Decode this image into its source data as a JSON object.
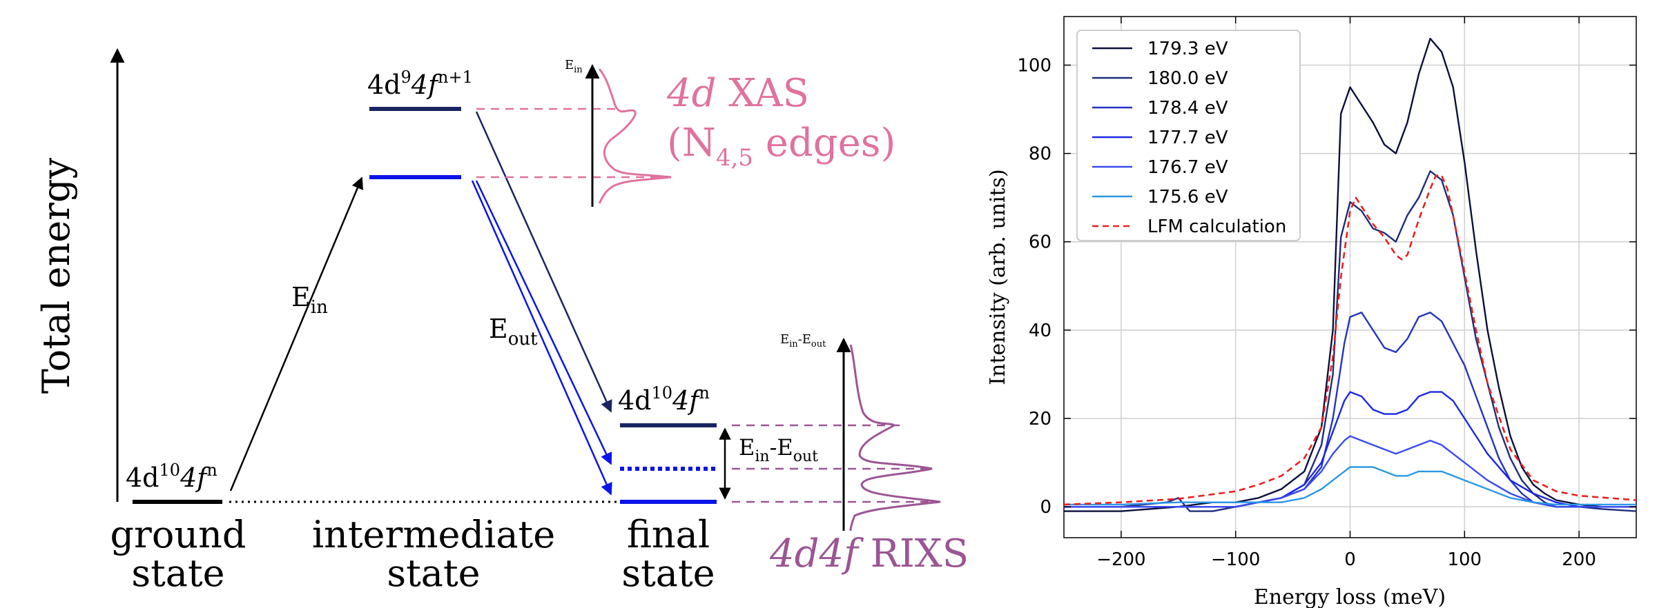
{
  "diagram": {
    "y_axis_label": "Total energy",
    "levels": {
      "ground": {
        "config_main": "4d",
        "config_sup1": "10",
        "config_mid": "4f",
        "config_sup2": "n"
      },
      "intermediate": {
        "config_main": "4d",
        "config_sup1": "9",
        "config_mid": "4f",
        "config_sup2": "n+1"
      },
      "final": {
        "config_main": "4d",
        "config_sup1": "10",
        "config_mid": "4f",
        "config_sup2": "n"
      }
    },
    "state_labels": {
      "ground_line1": "ground",
      "ground_line2": "state",
      "intermediate_line1": "intermediate",
      "intermediate_line2": "state",
      "final_line1": "final",
      "final_line2": "state"
    },
    "arrows": {
      "ein_main": "E",
      "ein_sub": "in",
      "eout_main": "E",
      "eout_sub": "out",
      "diff_a": "E",
      "diff_a_sub": "in",
      "diff_dash": "-",
      "diff_b": "E",
      "diff_b_sub": "out"
    },
    "xas": {
      "axis_main": "E",
      "axis_sub": "in",
      "title_italic": "4d",
      "title_rest": " XAS",
      "edges_open": "(N",
      "edges_sub": "4,5",
      "edges_close": " edges)"
    },
    "rixs": {
      "axis_a": "E",
      "axis_a_sub": "in",
      "axis_dash": "-",
      "axis_b": "E",
      "axis_b_sub": "out",
      "title_italic": "4d4f",
      "title_rest": " RIXS"
    },
    "colors": {
      "xas": "#e0729e",
      "rixs": "#9b5594",
      "navy": "#1a2560",
      "blue": "#0a14e6"
    }
  },
  "chart_data": {
    "type": "line",
    "title": "",
    "xlabel": "Energy loss (meV)",
    "ylabel": "Intensity (arb. units)",
    "xlim": [
      -250,
      250
    ],
    "ylim": [
      -7,
      111
    ],
    "xticks": [
      -200,
      -100,
      0,
      100,
      200
    ],
    "yticks": [
      0,
      20,
      40,
      60,
      80,
      100
    ],
    "grid": true,
    "legend_position": "top-left",
    "series": [
      {
        "name": "179.3 eV",
        "color": "#0b0f3a",
        "dashed": false,
        "x": [
          -250,
          -200,
          -150,
          -120,
          -100,
          -80,
          -60,
          -40,
          -25,
          -15,
          -8,
          0,
          10,
          20,
          30,
          40,
          50,
          60,
          70,
          80,
          90,
          100,
          110,
          120,
          130,
          140,
          150,
          160,
          170,
          180,
          200,
          220,
          250
        ],
        "y": [
          -1,
          -1,
          0,
          1,
          1,
          2,
          4,
          8,
          18,
          40,
          89,
          95,
          91,
          87,
          82,
          80,
          87,
          98,
          106,
          103,
          95,
          78,
          58,
          40,
          27,
          16,
          9,
          5,
          3,
          1.5,
          0.5,
          0,
          0
        ]
      },
      {
        "name": "180.0 eV",
        "color": "#1f2d7a",
        "dashed": false,
        "x": [
          -250,
          -200,
          -160,
          -150,
          -140,
          -120,
          -100,
          -80,
          -60,
          -40,
          -25,
          -15,
          -8,
          0,
          10,
          20,
          30,
          40,
          50,
          60,
          70,
          80,
          90,
          100,
          110,
          120,
          130,
          140,
          150,
          160,
          170,
          180,
          200,
          220,
          250
        ],
        "y": [
          0,
          0,
          1,
          2,
          -1,
          -1,
          0,
          1,
          2,
          5,
          14,
          30,
          61,
          69,
          67,
          63,
          62,
          60,
          66,
          70,
          76,
          74,
          66,
          52,
          38,
          28,
          18,
          11,
          6,
          3,
          1,
          0,
          0,
          -0.5,
          -1
        ]
      },
      {
        "name": "178.4 eV",
        "color": "#2333c0",
        "dashed": false,
        "x": [
          -250,
          -200,
          -150,
          -100,
          -80,
          -60,
          -40,
          -25,
          -15,
          -5,
          0,
          10,
          20,
          30,
          40,
          50,
          60,
          70,
          80,
          90,
          100,
          110,
          120,
          130,
          140,
          150,
          160,
          180,
          200,
          220,
          250
        ],
        "y": [
          0,
          0,
          0,
          0,
          1,
          2,
          4,
          9,
          20,
          37,
          43,
          44,
          40,
          36,
          35,
          38,
          43,
          44,
          42,
          37,
          32,
          25,
          18,
          11,
          6,
          3,
          1,
          0,
          0,
          0,
          0
        ]
      },
      {
        "name": "177.7 eV",
        "color": "#1c27e6",
        "dashed": false,
        "x": [
          -250,
          -200,
          -150,
          -100,
          -80,
          -60,
          -40,
          -25,
          -15,
          -5,
          0,
          10,
          20,
          30,
          40,
          50,
          60,
          70,
          80,
          90,
          100,
          110,
          120,
          140,
          160,
          180,
          200,
          250
        ],
        "y": [
          0,
          0,
          0,
          0,
          1,
          2,
          5,
          10,
          17,
          24,
          26,
          25,
          22,
          21,
          21,
          22,
          25,
          26,
          26,
          24,
          20,
          16,
          12,
          6,
          3,
          1,
          0,
          0
        ]
      },
      {
        "name": "176.7 eV",
        "color": "#3a4af0",
        "dashed": false,
        "x": [
          -250,
          -200,
          -150,
          -100,
          -80,
          -60,
          -40,
          -25,
          -15,
          -5,
          0,
          10,
          20,
          30,
          40,
          50,
          60,
          70,
          80,
          90,
          100,
          110,
          120,
          140,
          160,
          180,
          200,
          250
        ],
        "y": [
          0,
          0,
          0,
          0,
          1,
          2,
          4,
          8,
          12,
          15,
          16,
          15,
          14,
          13,
          12,
          13,
          14,
          15,
          14,
          12,
          10,
          8,
          6,
          3,
          1,
          0,
          0,
          0
        ]
      },
      {
        "name": "175.6 eV",
        "color": "#2b97e6",
        "dashed": false,
        "x": [
          -250,
          -200,
          -150,
          -100,
          -80,
          -60,
          -40,
          -25,
          -15,
          -5,
          0,
          10,
          20,
          30,
          40,
          50,
          60,
          70,
          80,
          90,
          100,
          110,
          120,
          140,
          160,
          180,
          200,
          250
        ],
        "y": [
          0.5,
          0.5,
          1,
          1,
          1,
          1,
          2,
          4,
          6,
          8,
          9,
          9,
          9,
          8,
          7,
          7,
          8,
          8,
          8,
          7,
          6,
          5,
          4,
          2,
          1,
          0.5,
          0.5,
          0.5
        ]
      },
      {
        "name": "LFM calculation",
        "color": "#e8221f",
        "dashed": true,
        "x": [
          -250,
          -200,
          -150,
          -100,
          -80,
          -60,
          -40,
          -25,
          -15,
          -8,
          0,
          5,
          10,
          20,
          30,
          40,
          45,
          50,
          55,
          60,
          70,
          75,
          80,
          85,
          90,
          100,
          110,
          120,
          140,
          160,
          180,
          200,
          250
        ],
        "y": [
          0.5,
          1,
          1.8,
          3.5,
          5,
          7,
          11,
          18,
          34,
          52,
          67,
          70,
          68,
          64,
          61,
          57,
          56,
          57,
          61,
          65,
          72,
          75,
          75,
          72,
          66,
          53,
          40,
          28,
          13,
          6,
          3.5,
          2.5,
          1.5
        ]
      }
    ]
  }
}
